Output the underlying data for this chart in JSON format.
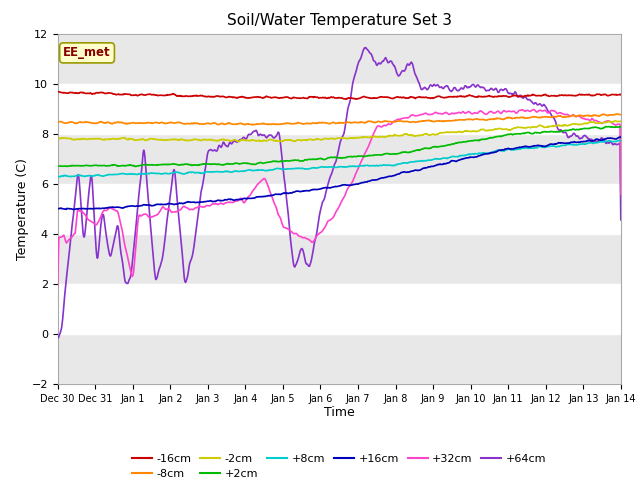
{
  "title": "Soil/Water Temperature Set 3",
  "xlabel": "Time",
  "ylabel": "Temperature (C)",
  "ylim": [
    -2,
    12
  ],
  "yticks": [
    -2,
    0,
    2,
    4,
    6,
    8,
    10,
    12
  ],
  "annotation": "EE_met",
  "series": {
    "-16cm": {
      "color": "#cc0000",
      "lw": 1.2
    },
    "-8cm": {
      "color": "#ff8800",
      "lw": 1.2
    },
    "-2cm": {
      "color": "#cccc00",
      "lw": 1.2
    },
    "+2cm": {
      "color": "#00bb00",
      "lw": 1.2
    },
    "+8cm": {
      "color": "#00cccc",
      "lw": 1.2
    },
    "+16cm": {
      "color": "#0000bb",
      "lw": 1.2
    },
    "+32cm": {
      "color": "#ff44cc",
      "lw": 1.2
    },
    "+64cm": {
      "color": "#8833cc",
      "lw": 1.2
    }
  },
  "xticklabels": [
    "Dec 30",
    "Dec 31",
    "Jan 1",
    "Jan 2",
    "Jan 3",
    "Jan 4",
    "Jan 5",
    "Jan 6",
    "Jan 7",
    "Jan 8",
    "Jan 9",
    "Jan 10",
    "Jan 11",
    "Jan 12",
    "Jan 13",
    "Jan 14"
  ],
  "num_points": 1344,
  "days": 15
}
